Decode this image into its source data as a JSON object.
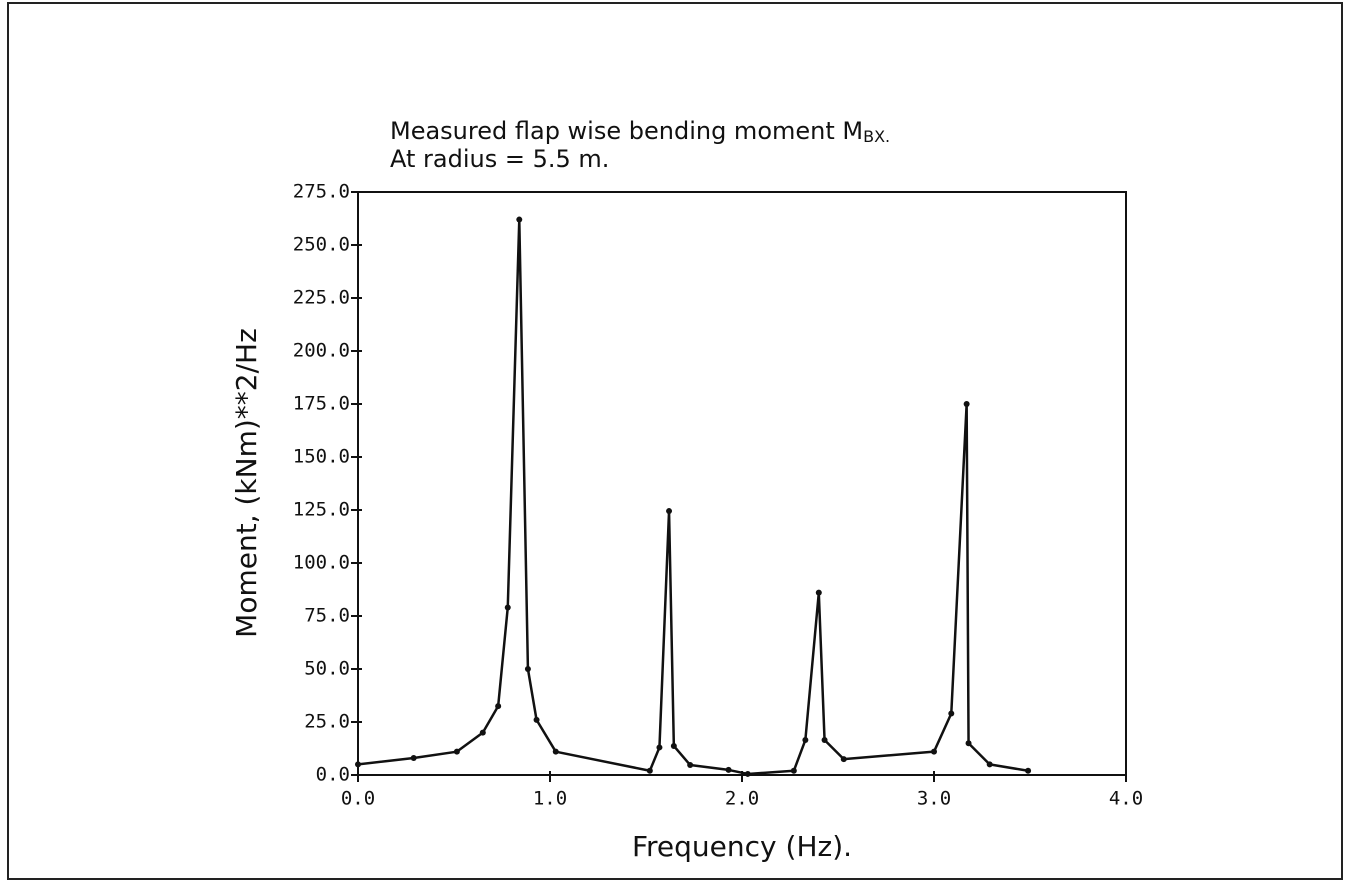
{
  "chart_data": {
    "type": "line",
    "title": "Measured flap wise bending moment M",
    "title_subscript": "BX.",
    "subtitle": "At radius = 5.5 m.",
    "x_label": "Frequency (Hz).",
    "y_label": "Moment, (kNm)**2/Hz",
    "x": [
      0,
      0.29,
      0.515,
      0.65,
      0.73,
      0.78,
      0.84,
      0.885,
      0.93,
      1.03,
      1.52,
      1.57,
      1.62,
      1.645,
      1.73,
      1.93,
      2.03,
      2.27,
      2.33,
      2.4,
      2.43,
      2.53,
      3.0,
      3.09,
      3.17,
      3.18,
      3.29,
      3.49
    ],
    "series": [
      {
        "color": "#111111",
        "values": [
          5,
          8,
          11,
          20,
          32.5,
          79,
          262,
          50,
          26,
          11,
          2,
          13,
          124.5,
          13.7,
          4.7,
          2.4,
          0.5,
          2,
          16.5,
          86,
          16.5,
          7.5,
          11,
          29,
          175,
          15,
          5,
          2
        ]
      }
    ],
    "xlim": [
      0,
      4
    ],
    "ylim": [
      0,
      275
    ],
    "xticks": [
      {
        "value": 0,
        "label": "0.0"
      },
      {
        "value": 1,
        "label": "1.0"
      },
      {
        "value": 2,
        "label": "2.0"
      },
      {
        "value": 3,
        "label": "3.0"
      },
      {
        "value": 4,
        "label": "4.0"
      }
    ],
    "yticks": [
      {
        "value": 0,
        "label": "0.0"
      },
      {
        "value": 25,
        "label": "25.0"
      },
      {
        "value": 50,
        "label": "50.0"
      },
      {
        "value": 75,
        "label": "75.0"
      },
      {
        "value": 100,
        "label": "100.0"
      },
      {
        "value": 125,
        "label": "125.0"
      },
      {
        "value": 150,
        "label": "150.0"
      },
      {
        "value": 175,
        "label": "175.0"
      },
      {
        "value": 200,
        "label": "200.0"
      },
      {
        "value": 225,
        "label": "225.0"
      },
      {
        "value": 250,
        "label": "250.0"
      },
      {
        "value": 275,
        "label": "275.0"
      }
    ],
    "grid": false
  }
}
